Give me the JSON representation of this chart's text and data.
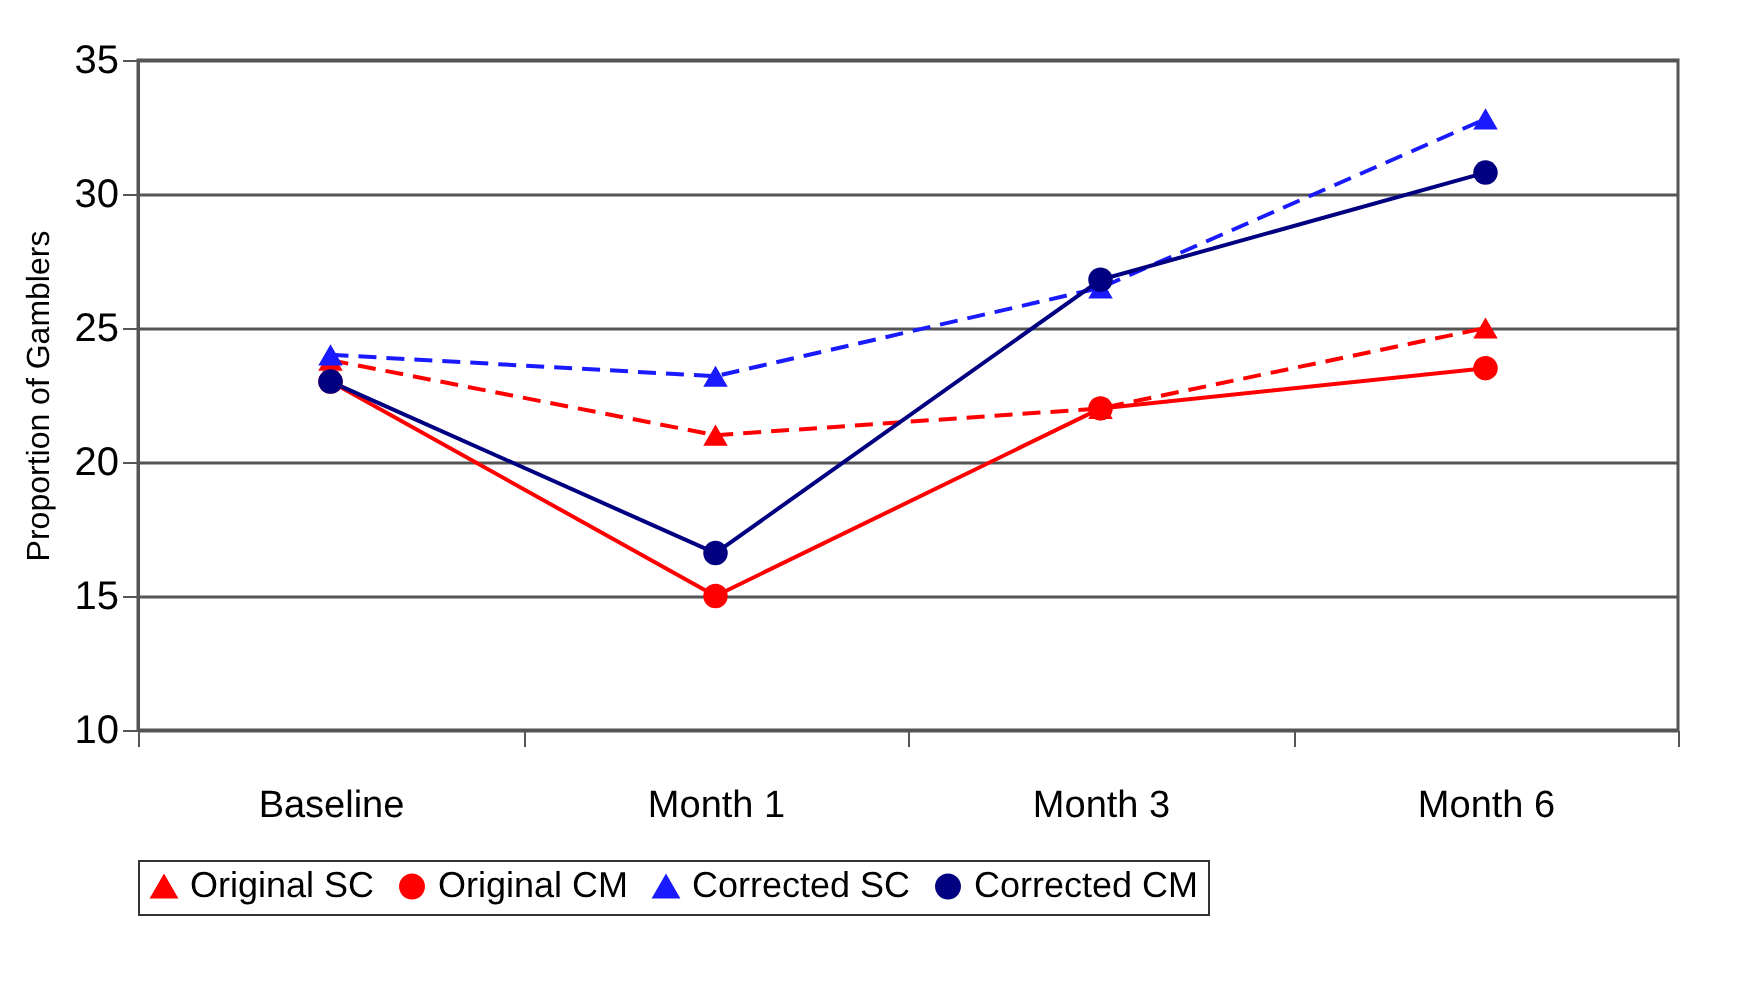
{
  "chart_data": {
    "type": "line",
    "ylabel": "Proportion of Gamblers",
    "categories": [
      "Baseline",
      "Month 1",
      "Month 3",
      "Month 6"
    ],
    "ylim": [
      10,
      35
    ],
    "yticks": [
      10,
      15,
      20,
      25,
      30,
      35
    ],
    "grid": "y",
    "legend": "bottom",
    "series": [
      {
        "name": "Original SC",
        "color": "#ff0000",
        "marker": "triangle",
        "line_style": "dashed",
        "values": [
          23.8,
          21,
          22,
          25
        ]
      },
      {
        "name": "Original CM",
        "color": "#ff0000",
        "marker": "circle",
        "line_style": "solid",
        "values": [
          23,
          15,
          22,
          23.5
        ]
      },
      {
        "name": "Corrected SC",
        "color": "#1a1aff",
        "marker": "triangle",
        "line_style": "dashed",
        "values": [
          24,
          23.2,
          26.5,
          32.8
        ]
      },
      {
        "name": "Corrected CM",
        "color": "#000080",
        "marker": "circle",
        "line_style": "solid",
        "values": [
          23,
          16.6,
          26.8,
          30.8
        ]
      }
    ]
  }
}
